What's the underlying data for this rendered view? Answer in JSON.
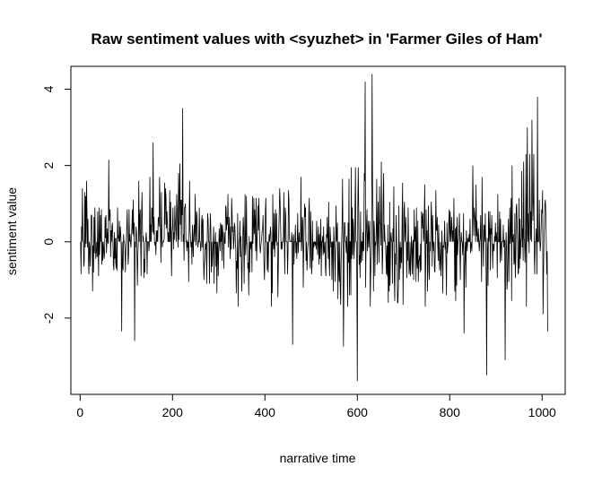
{
  "chart_data": {
    "type": "line",
    "title": "Raw sentiment values with <syuzhet> in 'Farmer Giles of Ham'",
    "xlabel": "narrative time",
    "ylabel": "sentiment value",
    "xlim": [
      -20,
      1050
    ],
    "ylim": [
      -4,
      4.6
    ],
    "xticks": [
      0,
      200,
      400,
      600,
      800,
      1000
    ],
    "yticks": [
      -2,
      0,
      2,
      4
    ],
    "grid": false,
    "legend": "none",
    "series_color": "#000000",
    "n_points": 1012,
    "anchor_points": [
      {
        "x": 1,
        "y": 0.0
      },
      {
        "x": 5,
        "y": 1.4
      },
      {
        "x": 10,
        "y": 1.3
      },
      {
        "x": 14,
        "y": 1.6
      },
      {
        "x": 27,
        "y": -1.3
      },
      {
        "x": 62,
        "y": 2.15
      },
      {
        "x": 90,
        "y": -2.35
      },
      {
        "x": 118,
        "y": -2.6
      },
      {
        "x": 158,
        "y": 2.6
      },
      {
        "x": 222,
        "y": 3.5
      },
      {
        "x": 365,
        "y": -1.4
      },
      {
        "x": 460,
        "y": -2.7
      },
      {
        "x": 570,
        "y": -2.75
      },
      {
        "x": 600,
        "y": -3.65
      },
      {
        "x": 617,
        "y": 4.2
      },
      {
        "x": 632,
        "y": 4.4
      },
      {
        "x": 752,
        "y": -1.3
      },
      {
        "x": 831,
        "y": -2.4
      },
      {
        "x": 850,
        "y": 2.0
      },
      {
        "x": 870,
        "y": 1.7
      },
      {
        "x": 880,
        "y": -3.5
      },
      {
        "x": 920,
        "y": -3.1
      },
      {
        "x": 935,
        "y": 2.0
      },
      {
        "x": 968,
        "y": 3.0
      },
      {
        "x": 978,
        "y": 3.2
      },
      {
        "x": 990,
        "y": 3.8
      },
      {
        "x": 1012,
        "y": -2.35
      }
    ]
  }
}
